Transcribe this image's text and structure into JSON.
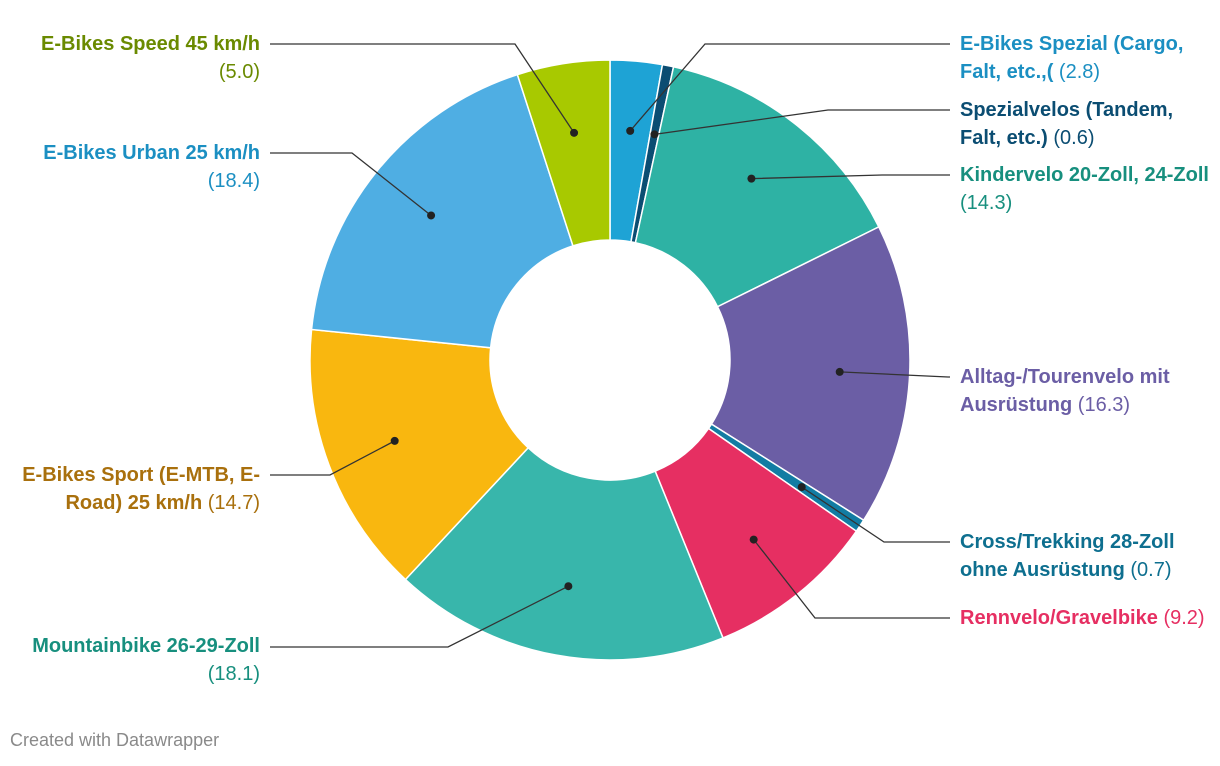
{
  "chart_data": {
    "type": "pie",
    "variant": "donut",
    "title": "",
    "slices": [
      {
        "label": "E-Bikes Spezial (Cargo, Falt, etc.,(",
        "value": 2.8,
        "value_text": "(2.8)",
        "color": "#1ea3d5",
        "text_color": "#1b8fc2",
        "side": "right"
      },
      {
        "label": "Spezialvelos (Tandem, Falt, etc.)",
        "value": 0.6,
        "value_text": "(0.6)",
        "color": "#0b4d72",
        "text_color": "#0b4d72",
        "side": "right"
      },
      {
        "label": "Kindervelo 20-Zoll, 24-Zoll",
        "value": 14.3,
        "value_text": "(14.3)",
        "color": "#2eb2a4",
        "text_color": "#178f7e",
        "side": "right"
      },
      {
        "label": "Alltag-/Tourenvelo mit Ausrüstung",
        "value": 16.3,
        "value_text": "(16.3)",
        "color": "#6b5ea5",
        "text_color": "#6b5ea5",
        "side": "right"
      },
      {
        "label": "Cross/Trekking 28-Zoll ohne Ausrüstung",
        "value": 0.7,
        "value_text": "(0.7)",
        "color": "#127ca3",
        "text_color": "#0e6f8f",
        "side": "right"
      },
      {
        "label": "Rennvelo/Gravelbike",
        "value": 9.2,
        "value_text": "(9.2)",
        "color": "#e62f62",
        "text_color": "#e62f62",
        "side": "right"
      },
      {
        "label": "Mountainbike 26-29-Zoll",
        "value": 18.1,
        "value_text": "(18.1)",
        "color": "#38b6ab",
        "text_color": "#178f7e",
        "side": "left"
      },
      {
        "label": "E-Bikes Sport (E-MTB, E-Road) 25 km/h",
        "value": 14.7,
        "value_text": "(14.7)",
        "color": "#f9b70f",
        "text_color": "#a9700d",
        "side": "left"
      },
      {
        "label": "E-Bikes Urban 25 km/h",
        "value": 18.4,
        "value_text": "(18.4)",
        "color": "#4faee3",
        "text_color": "#1b8fc2",
        "side": "left"
      },
      {
        "label": "E-Bikes Speed 45 km/h",
        "value": 5.0,
        "value_text": "(5.0)",
        "color": "#a8c900",
        "text_color": "#6a8a00",
        "side": "left"
      }
    ]
  },
  "labels": [
    {
      "name": "E-Bikes Spezial (Cargo, Falt, etc.,(",
      "value": "(2.8)"
    },
    {
      "name": "Spezialvelos (Tandem, Falt, etc.)",
      "value": "(0.6)"
    },
    {
      "name": "Kindervelo 20-Zoll, 24-Zoll",
      "value": "(14.3)"
    },
    {
      "name": "Alltag-/Tourenvelo mit Ausrüstung",
      "value": "(16.3)"
    },
    {
      "name": "Cross/Trekking 28-Zoll ohne Ausrüstung",
      "value": "(0.7)"
    },
    {
      "name": "Rennvelo/Gravelbike",
      "value": "(9.2)"
    },
    {
      "name": "Mountainbike 26-29-Zoll",
      "value": "(18.1)"
    },
    {
      "name": "E-Bikes Sport (E-MTB, E-Road) 25 km/h",
      "value": "(14.7)"
    },
    {
      "name": "E-Bikes Urban 25 km/h",
      "value": "(18.4)"
    },
    {
      "name": "E-Bikes Speed 45 km/h",
      "value": "(5.0)"
    }
  ],
  "footer": "Created with Datawrapper"
}
